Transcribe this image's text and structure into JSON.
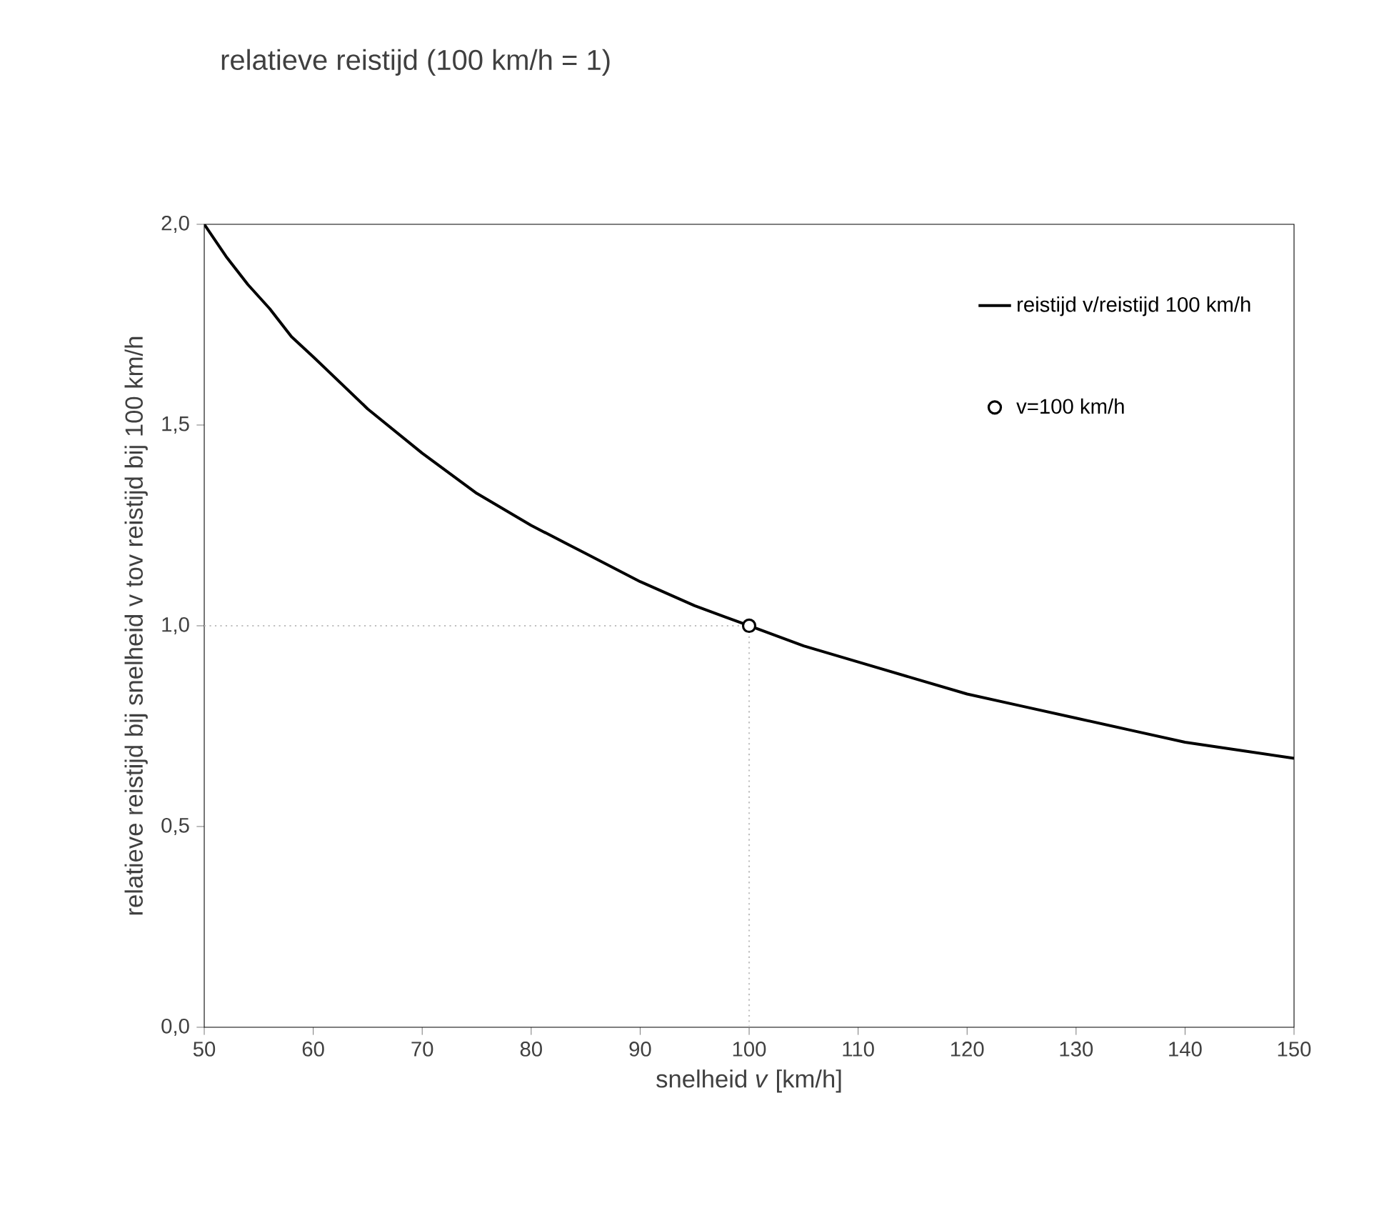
{
  "chart_data": {
    "type": "line",
    "title": "relatieve reistijd (100 km/h = 1)",
    "xlabel": "snelheid *v* [km/h]",
    "ylabel": "relatieve reistijd bij snelheid v tov reistijd bij 100 km/h",
    "series": [
      {
        "name": "reistijd v/reistijd 100 km/h",
        "color": "#000000",
        "marker": "none",
        "line_style": "solid",
        "x": [
          50,
          52,
          54,
          56,
          58,
          60,
          65,
          70,
          75,
          80,
          85,
          90,
          95,
          100,
          105,
          110,
          115,
          120,
          125,
          130,
          135,
          140,
          145,
          150
        ],
        "values": [
          2.0,
          1.92,
          1.85,
          1.79,
          1.72,
          1.67,
          1.54,
          1.43,
          1.33,
          1.25,
          1.18,
          1.11,
          1.05,
          1.0,
          0.95,
          0.91,
          0.87,
          0.83,
          0.8,
          0.77,
          0.74,
          0.71,
          0.69,
          0.67
        ]
      },
      {
        "name": "v=100 km/h",
        "type": "scatter",
        "color": "#000000",
        "marker": "circle",
        "x": [
          100
        ],
        "values": [
          1.0
        ]
      }
    ],
    "xlim": [
      50,
      150
    ],
    "xticks": [
      50,
      60,
      70,
      80,
      90,
      100,
      110,
      120,
      130,
      140,
      150
    ],
    "ylim": [
      0,
      2
    ],
    "yticks": [
      {
        "value": 0,
        "label": "0,0"
      },
      {
        "value": 0.5,
        "label": "0,5"
      },
      {
        "value": 1,
        "label": "1,0"
      },
      {
        "value": 1.5,
        "label": "1,5"
      },
      {
        "value": 2,
        "label": "2,0"
      }
    ],
    "ref_lines": [
      {
        "axis": "x",
        "value": 100,
        "color": "#bfbfbf",
        "line_style": "dotted"
      },
      {
        "axis": "y",
        "value": 1,
        "color": "#bfbfbf",
        "line_style": "dotted"
      }
    ],
    "grid": false,
    "legend": "top right"
  }
}
